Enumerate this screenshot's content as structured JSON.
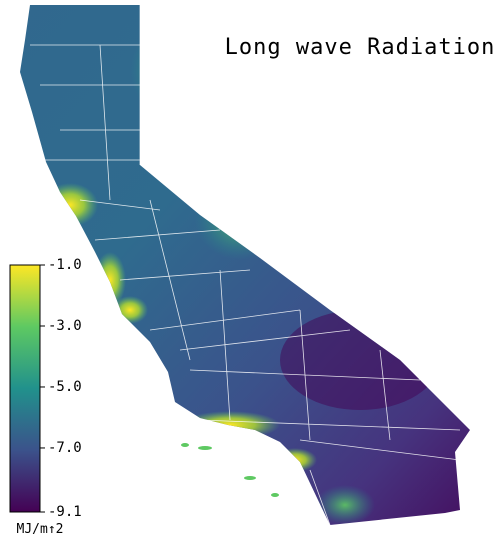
{
  "title": "Long wave Radiation",
  "colorbar": {
    "lim": [
      -9.1,
      -1.0
    ],
    "ticks": [
      {
        "value": -1.0,
        "label": "-1.0"
      },
      {
        "value": -3.0,
        "label": "-3.0"
      },
      {
        "value": -5.0,
        "label": "-5.0"
      },
      {
        "value": -7.0,
        "label": "-7.0"
      },
      {
        "value": -9.1,
        "label": "-9.1"
      }
    ],
    "label": "MJ/m↑2",
    "colors": [
      "#440154",
      "#3b528b",
      "#21918c",
      "#5ec962",
      "#fde725"
    ]
  }
}
